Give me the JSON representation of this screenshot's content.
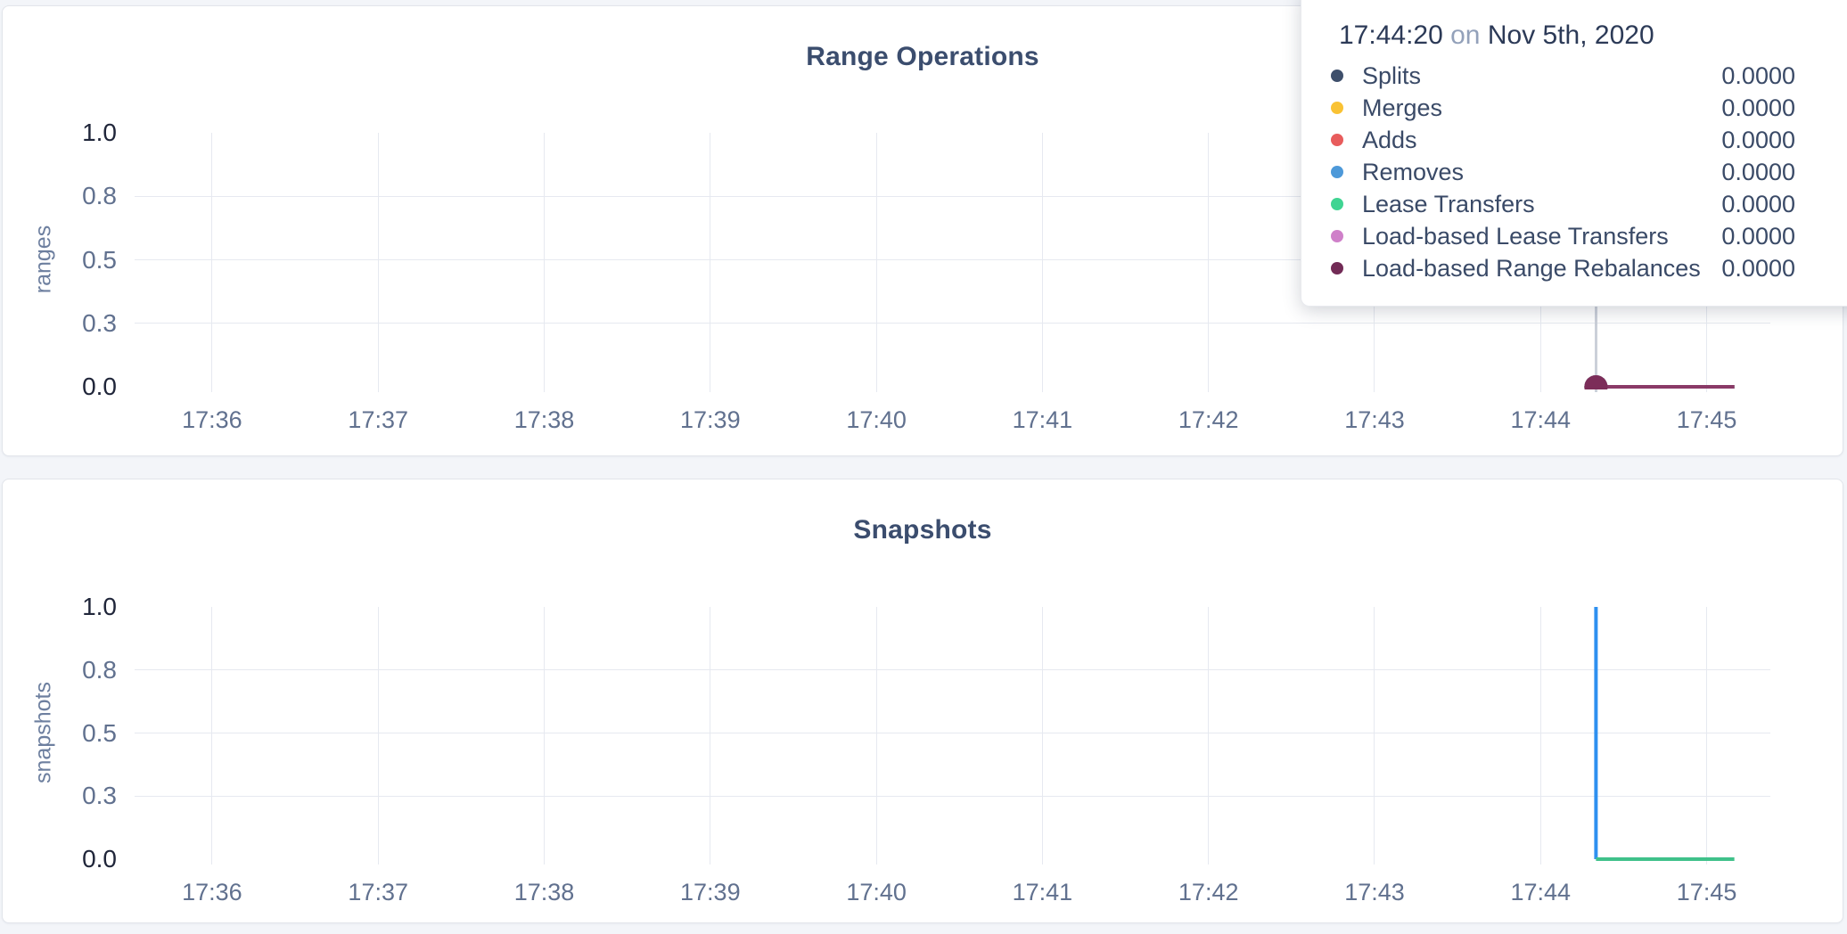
{
  "page": {
    "background": "#f3f5f9"
  },
  "tooltip": {
    "time": "17:44:20",
    "conjunction": "on",
    "date": "Nov 5th, 2020",
    "rows": [
      {
        "label": "Splits",
        "value": "0.0000",
        "color": "#3e4f6b"
      },
      {
        "label": "Merges",
        "value": "0.0000",
        "color": "#f9c234"
      },
      {
        "label": "Adds",
        "value": "0.0000",
        "color": "#e85c5c"
      },
      {
        "label": "Removes",
        "value": "0.0000",
        "color": "#4d99d9"
      },
      {
        "label": "Lease Transfers",
        "value": "0.0000",
        "color": "#3fd492"
      },
      {
        "label": "Load-based Lease Transfers",
        "value": "0.0000",
        "color": "#cf80c9"
      },
      {
        "label": "Load-based Range Rebalances",
        "value": "0.0000",
        "color": "#722b56"
      }
    ]
  },
  "chart_data": [
    {
      "type": "line",
      "title": "Range Operations",
      "ylabel": "ranges",
      "ylim": [
        0,
        1
      ],
      "grid": true,
      "legend_position": "tooltip",
      "x_domain": [
        "17:35:32",
        "17:45:23"
      ],
      "x_ticks": [
        "17:36",
        "17:37",
        "17:38",
        "17:39",
        "17:40",
        "17:41",
        "17:42",
        "17:43",
        "17:44",
        "17:45"
      ],
      "y_ticks": [
        {
          "pos": 1.0,
          "label": "1.0",
          "emphasis": true,
          "grid": false
        },
        {
          "pos": 0.75,
          "label": "0.8",
          "emphasis": false,
          "grid": true
        },
        {
          "pos": 0.5,
          "label": "0.5",
          "emphasis": false,
          "grid": true
        },
        {
          "pos": 0.25,
          "label": "0.3",
          "emphasis": false,
          "grid": true
        },
        {
          "pos": 0.0,
          "label": "0.0",
          "emphasis": true,
          "grid": false
        }
      ],
      "hover_time": "17:44:20",
      "series": [
        {
          "name": "Splits",
          "color": "#3e4f6b",
          "points": [
            [
              "17:44:20",
              0
            ],
            [
              "17:45:10",
              0
            ]
          ],
          "marker": true
        },
        {
          "name": "Merges",
          "color": "#f9c234",
          "points": [
            [
              "17:44:20",
              0
            ],
            [
              "17:45:10",
              0
            ]
          ],
          "marker": true
        },
        {
          "name": "Adds",
          "color": "#e85c5c",
          "points": [
            [
              "17:44:20",
              0
            ],
            [
              "17:45:10",
              0
            ]
          ],
          "marker": true
        },
        {
          "name": "Removes",
          "color": "#4d99d9",
          "points": [
            [
              "17:44:20",
              0
            ],
            [
              "17:45:10",
              0
            ]
          ],
          "marker": true
        },
        {
          "name": "Lease Transfers",
          "color": "#3fd492",
          "points": [
            [
              "17:44:20",
              0
            ],
            [
              "17:45:10",
              0
            ]
          ],
          "marker": true
        },
        {
          "name": "Load-based Lease Transfers",
          "color": "#cf80c9",
          "points": [
            [
              "17:44:20",
              0
            ],
            [
              "17:45:10",
              0
            ]
          ],
          "marker": true
        },
        {
          "name": "Load-based Range Rebalances",
          "color": "#8a3a67",
          "points": [
            [
              "17:44:20",
              0
            ],
            [
              "17:45:10",
              0
            ]
          ],
          "marker": true,
          "marker_color": "#7c2d59"
        }
      ]
    },
    {
      "type": "line",
      "title": "Snapshots",
      "ylabel": "snapshots",
      "ylim": [
        0,
        1
      ],
      "grid": true,
      "x_domain": [
        "17:35:32",
        "17:45:23"
      ],
      "x_ticks": [
        "17:36",
        "17:37",
        "17:38",
        "17:39",
        "17:40",
        "17:41",
        "17:42",
        "17:43",
        "17:44",
        "17:45"
      ],
      "y_ticks": [
        {
          "pos": 1.0,
          "label": "1.0",
          "emphasis": true,
          "grid": false
        },
        {
          "pos": 0.75,
          "label": "0.8",
          "emphasis": false,
          "grid": true
        },
        {
          "pos": 0.5,
          "label": "0.5",
          "emphasis": false,
          "grid": true
        },
        {
          "pos": 0.25,
          "label": "0.3",
          "emphasis": false,
          "grid": true
        },
        {
          "pos": 0.0,
          "label": "0.0",
          "emphasis": true,
          "grid": false
        }
      ],
      "series": [
        {
          "color": "#2e90f0",
          "points": [
            [
              "17:44:20",
              0
            ],
            [
              "17:44:20",
              1
            ],
            [
              "17:44:20",
              0
            ]
          ]
        },
        {
          "color": "#3fc18a",
          "points": [
            [
              "17:44:20",
              0
            ],
            [
              "17:45:10",
              0
            ]
          ]
        }
      ]
    }
  ]
}
